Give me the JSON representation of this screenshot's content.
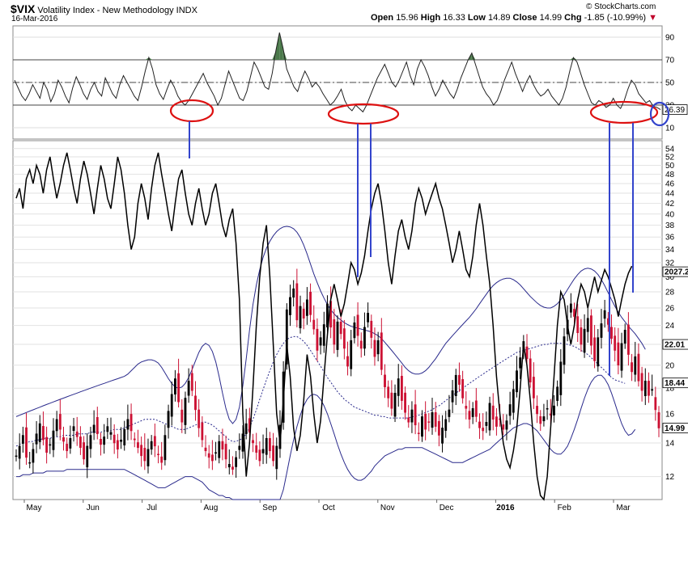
{
  "header": {
    "symbol": "$VIX",
    "name": "Volatility Index - New Methodology",
    "exchange": "INDX",
    "date": "16-Mar-2016",
    "brand": "© StockCharts.com",
    "open_label": "Open",
    "open": "15.96",
    "high_label": "High",
    "high": "16.33",
    "low_label": "Low",
    "low": "14.89",
    "close_label": "Close",
    "close": "14.99",
    "chg_label": "Chg",
    "chg": "-1.85 (-10.99%)",
    "chg_arrow": "▼"
  },
  "chart_data": {
    "type": "line",
    "colors": {
      "up_candle": "#000000",
      "down_candle": "#cc1133",
      "bollinger": "#2a2a8c",
      "overlay": "#000000",
      "annotation_red": "#dd1111",
      "annotation_blue": "#3344cc",
      "rsi_fill": "#4b7a4b"
    },
    "x_months": [
      "May",
      "Jun",
      "Jul",
      "Aug",
      "Sep",
      "Oct",
      "Nov",
      "Dec",
      "2016",
      "Feb",
      "Mar"
    ],
    "rsi_panel": {
      "y_ticks": [
        "90",
        "70",
        "50",
        "30",
        "10"
      ],
      "ylim": [
        0,
        100
      ],
      "reference_lines": [
        70,
        50,
        30
      ],
      "current_value_label": "26.39",
      "annotation_ellipses": 4,
      "points": [
        52,
        45,
        38,
        34,
        40,
        48,
        42,
        36,
        50,
        44,
        33,
        40,
        52,
        46,
        38,
        32,
        45,
        55,
        48,
        40,
        35,
        44,
        50,
        42,
        38,
        54,
        47,
        40,
        36,
        48,
        56,
        50,
        44,
        38,
        34,
        46,
        60,
        72,
        62,
        48,
        40,
        35,
        44,
        52,
        46,
        38,
        33,
        30,
        34,
        40,
        46,
        52,
        58,
        50,
        44,
        38,
        30,
        36,
        48,
        60,
        52,
        44,
        36,
        34,
        42,
        55,
        68,
        62,
        54,
        46,
        44,
        58,
        78,
        94,
        80,
        62,
        54,
        46,
        42,
        52,
        60,
        54,
        46,
        50,
        46,
        40,
        35,
        30,
        33,
        38,
        44,
        34,
        28,
        25,
        30,
        27,
        24,
        30,
        38,
        46,
        54,
        60,
        66,
        58,
        50,
        46,
        52,
        60,
        68,
        56,
        48,
        62,
        70,
        64,
        56,
        46,
        38,
        44,
        52,
        46,
        40,
        36,
        44,
        54,
        62,
        70,
        76,
        66,
        56,
        46,
        40,
        36,
        30,
        34,
        42,
        52,
        60,
        68,
        58,
        50,
        42,
        50,
        56,
        48,
        42,
        38,
        40,
        44,
        38,
        34,
        30,
        36,
        46,
        60,
        72,
        68,
        58,
        48,
        40,
        32,
        30,
        34,
        32,
        28,
        30,
        36,
        30,
        27,
        34,
        44,
        52,
        48,
        40,
        36,
        32,
        34,
        29,
        28,
        26
      ]
    },
    "price_panel": {
      "log_scale": true,
      "ylim": [
        10.8,
        56
      ],
      "y_ticks_left_axis": [
        54,
        52,
        50,
        48,
        46,
        44,
        42,
        40,
        38,
        36,
        34,
        32,
        30,
        28,
        26,
        24,
        22,
        20,
        18,
        16,
        14,
        12
      ],
      "price_tags": [
        {
          "label": "2027.2",
          "value": 30.7
        },
        {
          "label": "22.01",
          "value": 22.0
        },
        {
          "label": "18.44",
          "value": 18.44
        },
        {
          "label": "14.99",
          "value": 14.99
        }
      ],
      "vix_close": [
        13.2,
        13.8,
        14.5,
        13.1,
        12.8,
        13.6,
        14.6,
        15.3,
        14.2,
        13.4,
        13.9,
        14.8,
        15.6,
        14.9,
        14.1,
        13.5,
        14.3,
        15.1,
        14.4,
        13.7,
        13.0,
        13.8,
        14.5,
        15.2,
        14.6,
        13.9,
        14.4,
        15.1,
        14.7,
        14.0,
        13.6,
        14.2,
        14.9,
        15.6,
        14.8,
        14.2,
        13.7,
        13.2,
        12.9,
        13.6,
        14.1,
        13.8,
        13.3,
        12.8,
        14.5,
        16.2,
        17.5,
        18.8,
        16.9,
        15.4,
        17.2,
        18.6,
        17.8,
        16.3,
        15.0,
        14.2,
        13.5,
        13.1,
        12.9,
        13.4,
        14.1,
        13.6,
        13.0,
        12.7,
        12.4,
        13.1,
        13.8,
        14.6,
        15.3,
        14.7,
        14.0,
        13.4,
        12.9,
        13.6,
        14.3,
        13.5,
        12.9,
        13.8,
        15.2,
        19.4,
        25.8,
        27.3,
        28.4,
        24.6,
        26.2,
        24.8,
        27.0,
        25.2,
        23.6,
        21.4,
        22.7,
        24.1,
        26.5,
        23.8,
        22.0,
        24.4,
        23.1,
        21.6,
        19.9,
        22.4,
        24.3,
        22.9,
        21.6,
        23.8,
        25.4,
        22.7,
        20.8,
        22.4,
        19.6,
        18.1,
        17.2,
        16.4,
        17.6,
        18.8,
        17.0,
        16.1,
        15.4,
        16.3,
        15.2,
        14.6,
        15.8,
        14.9,
        15.4,
        16.1,
        15.1,
        14.5,
        15.0,
        15.6,
        16.3,
        17.8,
        19.1,
        18.3,
        17.2,
        16.4,
        15.6,
        16.4,
        15.8,
        15.0,
        14.8,
        15.4,
        16.8,
        15.6,
        15.1,
        15.6,
        14.9,
        15.5,
        16.7,
        17.9,
        19.5,
        20.7,
        22.3,
        20.6,
        18.5,
        17.2,
        16.0,
        15.3,
        15.8,
        16.4,
        15.9,
        16.6,
        18.1,
        20.3,
        22.8,
        24.6,
        26.5,
        25.0,
        23.2,
        22.0,
        23.6,
        24.8,
        21.9,
        20.4,
        22.7,
        24.2,
        25.7,
        24.1,
        22.6,
        21.4,
        20.0,
        22.1,
        23.5,
        21.0,
        19.4,
        20.8,
        18.6,
        17.8,
        18.6,
        17.4,
        17.9,
        16.3,
        14.99
      ],
      "bb_upper": [
        15.8,
        15.9,
        16.0,
        16.1,
        16.2,
        16.3,
        16.4,
        16.5,
        16.6,
        16.7,
        16.8,
        16.9,
        17.0,
        17.1,
        17.2,
        17.3,
        17.4,
        17.5,
        17.6,
        17.7,
        17.8,
        17.9,
        18.0,
        18.1,
        18.2,
        18.3,
        18.4,
        18.5,
        18.6,
        18.7,
        18.8,
        18.9,
        19.0,
        19.2,
        19.5,
        19.8,
        20.1,
        20.3,
        20.4,
        20.5,
        20.5,
        20.4,
        20.2,
        19.8,
        19.3,
        18.8,
        18.4,
        18.1,
        18.0,
        18.1,
        18.4,
        18.9,
        19.6,
        20.4,
        21.2,
        21.8,
        22.1,
        21.9,
        21.3,
        20.3,
        19.0,
        17.6,
        16.4,
        15.6,
        15.3,
        15.6,
        16.5,
        18.2,
        20.6,
        23.5,
        26.4,
        28.9,
        31.0,
        32.8,
        34.2,
        35.3,
        36.2,
        36.9,
        37.4,
        37.7,
        37.8,
        37.7,
        37.4,
        36.8,
        35.9,
        34.7,
        33.3,
        31.8,
        30.4,
        29.2,
        28.1,
        27.2,
        26.4,
        25.8,
        25.3,
        24.9,
        24.6,
        24.3,
        24.1,
        23.9,
        23.8,
        23.7,
        23.6,
        23.5,
        23.4,
        23.3,
        23.1,
        22.9,
        22.6,
        22.2,
        21.8,
        21.4,
        21.0,
        20.6,
        20.2,
        19.8,
        19.5,
        19.3,
        19.2,
        19.2,
        19.3,
        19.5,
        19.8,
        20.2,
        20.6,
        21.1,
        21.6,
        22.1,
        22.5,
        22.9,
        23.3,
        23.7,
        24.1,
        24.5,
        24.9,
        25.4,
        25.9,
        26.5,
        27.1,
        27.7,
        28.3,
        28.8,
        29.2,
        29.5,
        29.7,
        29.8,
        29.8,
        29.6,
        29.3,
        28.9,
        28.4,
        27.9,
        27.4,
        27.0,
        26.6,
        26.3,
        26.1,
        26.0,
        26.0,
        26.2,
        26.5,
        27.0,
        27.6,
        28.3,
        29.0,
        29.7,
        30.3,
        30.8,
        31.1,
        31.2,
        31.1,
        30.8,
        30.3,
        29.6,
        28.8,
        27.9,
        27.0,
        26.2,
        25.5,
        24.9,
        24.4,
        23.9,
        23.5,
        23.1,
        22.6,
        22.1,
        21.5
      ],
      "bb_mid": [
        13.8,
        13.9,
        14.0,
        14.0,
        14.1,
        14.1,
        14.2,
        14.2,
        14.3,
        14.3,
        14.3,
        14.4,
        14.4,
        14.4,
        14.5,
        14.5,
        14.5,
        14.5,
        14.6,
        14.6,
        14.6,
        14.6,
        14.7,
        14.7,
        14.7,
        14.7,
        14.8,
        14.8,
        14.8,
        14.9,
        14.9,
        14.9,
        15.0,
        15.1,
        15.2,
        15.3,
        15.4,
        15.5,
        15.6,
        15.6,
        15.6,
        15.6,
        15.5,
        15.4,
        15.3,
        15.2,
        15.1,
        15.0,
        14.9,
        14.9,
        14.9,
        15.0,
        15.1,
        15.2,
        15.3,
        15.4,
        15.4,
        15.3,
        15.2,
        15.0,
        14.8,
        14.6,
        14.4,
        14.2,
        14.1,
        14.1,
        14.2,
        14.3,
        14.6,
        15.0,
        15.6,
        16.3,
        17.1,
        17.9,
        18.7,
        19.5,
        20.3,
        21.0,
        21.6,
        22.1,
        22.5,
        22.7,
        22.8,
        22.8,
        22.6,
        22.3,
        21.9,
        21.4,
        20.9,
        20.4,
        19.9,
        19.4,
        18.9,
        18.5,
        18.1,
        17.7,
        17.4,
        17.1,
        16.9,
        16.7,
        16.5,
        16.4,
        16.3,
        16.2,
        16.1,
        16.0,
        15.9,
        15.9,
        15.8,
        15.8,
        15.7,
        15.7,
        15.7,
        15.7,
        15.7,
        15.7,
        15.7,
        15.8,
        15.8,
        15.9,
        16.0,
        16.1,
        16.2,
        16.3,
        16.5,
        16.6,
        16.8,
        17.0,
        17.2,
        17.4,
        17.6,
        17.8,
        18.0,
        18.2,
        18.4,
        18.6,
        18.8,
        19.0,
        19.2,
        19.4,
        19.6,
        19.8,
        20.0,
        20.2,
        20.4,
        20.6,
        20.8,
        21.0,
        21.2,
        21.3,
        21.4,
        21.5,
        21.6,
        21.7,
        21.8,
        21.9,
        22.0,
        22.0,
        22.1,
        22.1,
        22.1,
        22.1,
        22.1,
        22.0,
        21.9,
        21.8,
        21.6,
        21.4,
        21.2,
        21.0,
        20.7,
        20.4,
        20.1,
        19.8,
        19.5,
        19.2,
        18.9,
        18.7,
        18.6,
        18.5,
        18.4
      ],
      "bb_lower": [
        12.0,
        12.0,
        12.1,
        12.1,
        12.1,
        12.2,
        12.2,
        12.2,
        12.2,
        12.3,
        12.3,
        12.3,
        12.3,
        12.3,
        12.3,
        12.4,
        12.4,
        12.4,
        12.4,
        12.4,
        12.4,
        12.4,
        12.4,
        12.4,
        12.4,
        12.4,
        12.4,
        12.4,
        12.4,
        12.4,
        12.4,
        12.4,
        12.4,
        12.3,
        12.2,
        12.1,
        12.0,
        11.9,
        11.8,
        11.7,
        11.6,
        11.5,
        11.4,
        11.4,
        11.4,
        11.5,
        11.6,
        11.7,
        11.8,
        11.9,
        12.0,
        12.0,
        12.0,
        11.9,
        11.8,
        11.7,
        11.5,
        11.3,
        11.2,
        11.1,
        11.0,
        11.0,
        10.9,
        10.9,
        10.8,
        10.8,
        10.8,
        10.7,
        10.6,
        10.5,
        10.4,
        10.3,
        10.2,
        10.1,
        10.0,
        10.0,
        10.0,
        10.2,
        10.6,
        11.3,
        12.2,
        13.2,
        14.2,
        15.1,
        15.9,
        16.6,
        17.1,
        17.4,
        17.5,
        17.4,
        17.1,
        16.6,
        16.0,
        15.3,
        14.6,
        13.9,
        13.3,
        12.8,
        12.4,
        12.1,
        11.9,
        11.8,
        11.8,
        11.9,
        12.1,
        12.3,
        12.6,
        12.8,
        13.0,
        13.2,
        13.3,
        13.4,
        13.5,
        13.6,
        13.6,
        13.7,
        13.7,
        13.7,
        13.7,
        13.7,
        13.7,
        13.6,
        13.5,
        13.4,
        13.3,
        13.2,
        13.1,
        13.0,
        12.9,
        12.8,
        12.8,
        12.8,
        12.8,
        12.9,
        13.0,
        13.1,
        13.2,
        13.3,
        13.4,
        13.5,
        13.6,
        13.8,
        14.0,
        14.2,
        14.4,
        14.6,
        14.8,
        15.0,
        15.1,
        15.2,
        15.3,
        15.3,
        15.2,
        15.0,
        14.8,
        14.5,
        14.2,
        13.9,
        13.6,
        13.4,
        13.3,
        13.3,
        13.5,
        13.8,
        14.3,
        14.9,
        15.6,
        16.4,
        17.2,
        17.9,
        18.5,
        18.9,
        19.1,
        19.1,
        18.8,
        18.3,
        17.6,
        16.8,
        16.0,
        15.3,
        14.8,
        14.5,
        14.6,
        14.9
      ],
      "overlay_line": [
        43.0,
        45.0,
        41.0,
        47.0,
        49.0,
        46.0,
        50.0,
        48.0,
        44.0,
        49.0,
        52.0,
        47.0,
        43.0,
        46.0,
        50.0,
        53.0,
        49.0,
        45.0,
        42.0,
        47.0,
        51.0,
        48.0,
        44.0,
        40.0,
        45.0,
        50.0,
        47.0,
        43.0,
        41.0,
        46.0,
        52.0,
        49.0,
        44.0,
        38.0,
        34.0,
        36.0,
        42.0,
        46.0,
        43.0,
        39.0,
        45.0,
        50.0,
        53.0,
        48.0,
        44.0,
        40.0,
        37.0,
        42.0,
        47.0,
        49.0,
        44.0,
        40.0,
        38.0,
        42.0,
        45.0,
        41.0,
        38.0,
        40.0,
        44.0,
        46.0,
        42.0,
        38.0,
        36.0,
        39.0,
        41.0,
        35.0,
        27.0,
        16.0,
        12.0,
        14.0,
        18.0,
        24.0,
        30.0,
        35.0,
        38.0,
        30.0,
        22.0,
        16.0,
        14.0,
        17.0,
        22.0,
        19.0,
        15.0,
        13.5,
        14.5,
        17.0,
        21.0,
        19.0,
        16.0,
        14.0,
        15.5,
        19.0,
        23.0,
        27.0,
        29.0,
        27.0,
        25.0,
        26.5,
        29.0,
        32.0,
        31.0,
        29.0,
        30.5,
        33.0,
        37.0,
        41.0,
        44.0,
        46.0,
        42.0,
        37.0,
        32.0,
        29.0,
        33.0,
        37.0,
        39.0,
        36.0,
        34.0,
        37.0,
        42.0,
        45.0,
        43.0,
        40.0,
        42.0,
        44.0,
        46.0,
        43.0,
        41.0,
        38.0,
        35.0,
        32.0,
        34.0,
        37.0,
        34.0,
        31.0,
        30.0,
        33.0,
        38.0,
        42.0,
        38.0,
        33.0,
        29.0,
        24.0,
        19.0,
        16.0,
        14.0,
        13.0,
        12.5,
        13.5,
        15.0,
        18.0,
        22.0,
        20.0,
        17.0,
        14.0,
        12.0,
        11.0,
        10.2,
        12.0,
        15.0,
        19.0,
        24.0,
        28.0,
        27.0,
        24.0,
        22.0,
        24.0,
        27.0,
        29.0,
        28.0,
        26.0,
        28.0,
        30.0,
        28.0,
        29.5,
        31.0,
        30.0,
        28.5,
        27.0,
        25.0,
        27.0,
        29.0,
        30.5,
        31.5
      ]
    }
  }
}
